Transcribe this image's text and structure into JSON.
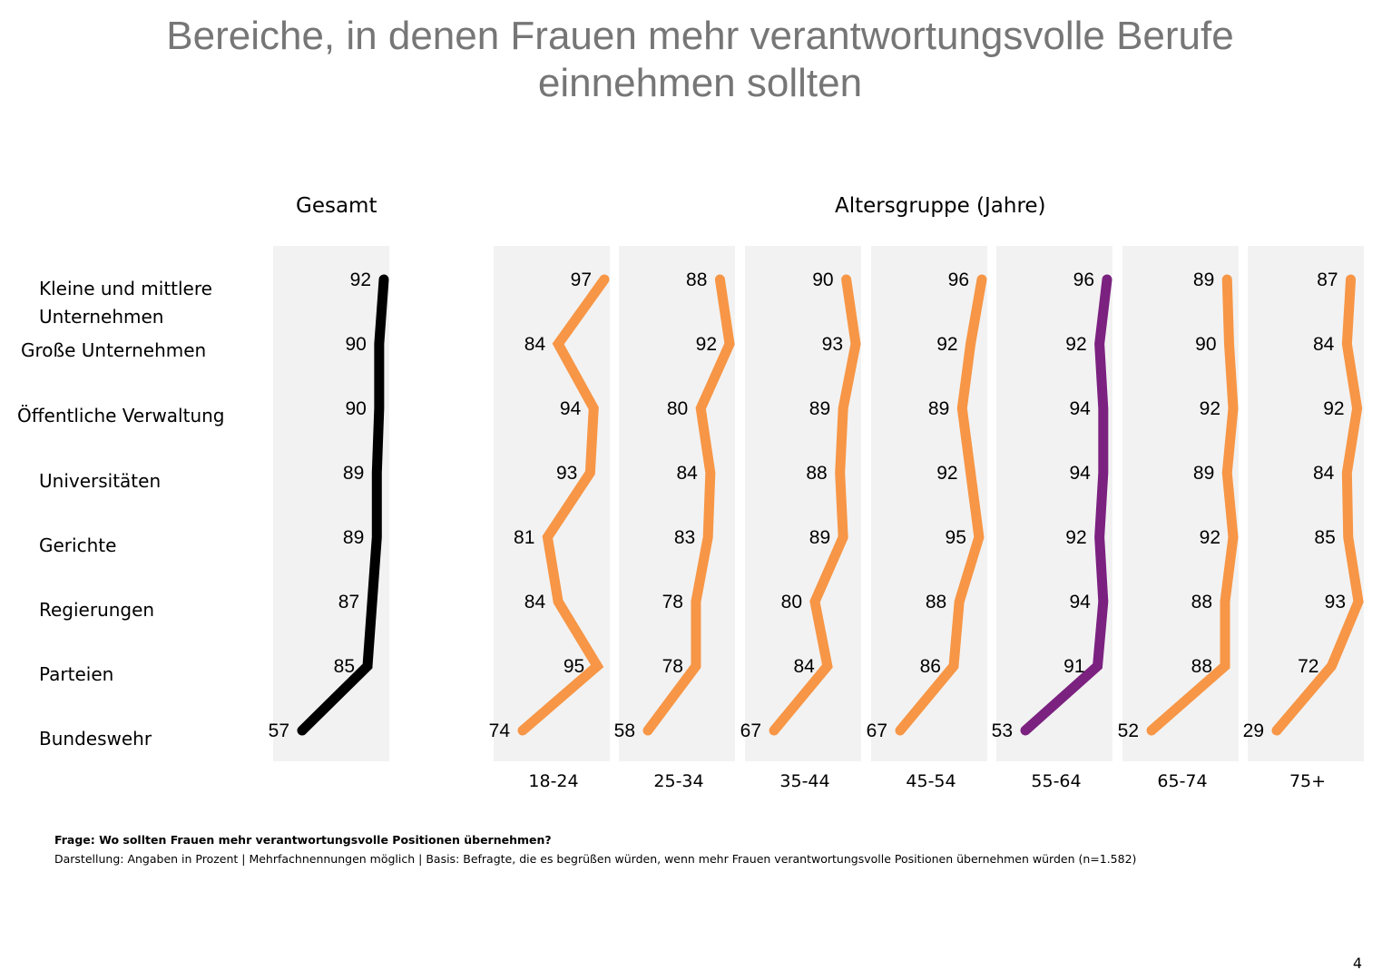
{
  "title_lines": [
    "Bereiche, in denen Frauen mehr verantwortungsvolle Berufe",
    "einnehmen sollten"
  ],
  "section_headers": {
    "total": "Gesamt",
    "age": "Altersgruppe (Jahre)"
  },
  "footer": {
    "question": "Frage: Wo sollten Frauen mehr verantwortungsvolle Positionen übernehmen?",
    "note": "Darstellung: Angaben in Prozent | Mehrfachnennungen möglich | Basis: Befragte, die es begrüßen würden, wenn mehr Frauen verantwortungsvolle Positionen übernehmen würden (n=1.582)"
  },
  "page_number": "4",
  "colors": {
    "total": "#000000",
    "age_default": "#F79646",
    "age_highlight": "#7B2180",
    "panel_bg": "#F2F2F2",
    "title": "#767676"
  },
  "chart_data": {
    "type": "line",
    "title": "Bereiche, in denen Frauen mehr verantwortungsvolle Berufe einnehmen sollten",
    "unit": "Prozent",
    "categories": [
      "Kleine und mittlere Unternehmen",
      "Große Unternehmen",
      "Öffentliche Verwaltung",
      "Universitäten",
      "Gerichte",
      "Regierungen",
      "Parteien",
      "Bundeswehr"
    ],
    "category_display": [
      [
        "Kleine und mittlere",
        "Unternehmen"
      ],
      [
        "Große Unternehmen"
      ],
      [
        "Öffentliche Verwaltung"
      ],
      [
        "Universitäten"
      ],
      [
        "Gerichte"
      ],
      [
        "Regierungen"
      ],
      [
        "Parteien"
      ],
      [
        "Bundeswehr"
      ]
    ],
    "series": [
      {
        "name": "Gesamt",
        "group": "total",
        "values": [
          92,
          90,
          90,
          89,
          89,
          87,
          85,
          57
        ]
      },
      {
        "name": "18-24",
        "group": "age",
        "values": [
          97,
          84,
          94,
          93,
          81,
          84,
          95,
          74
        ]
      },
      {
        "name": "25-34",
        "group": "age",
        "values": [
          88,
          92,
          80,
          84,
          83,
          78,
          78,
          58
        ]
      },
      {
        "name": "35-44",
        "group": "age",
        "values": [
          90,
          93,
          89,
          88,
          89,
          80,
          84,
          67
        ]
      },
      {
        "name": "45-54",
        "group": "age",
        "values": [
          96,
          92,
          89,
          92,
          95,
          88,
          86,
          67
        ]
      },
      {
        "name": "55-64",
        "group": "age",
        "highlight": true,
        "values": [
          96,
          92,
          94,
          94,
          92,
          94,
          91,
          53
        ]
      },
      {
        "name": "65-74",
        "group": "age",
        "values": [
          89,
          90,
          92,
          89,
          92,
          88,
          88,
          52
        ]
      },
      {
        "name": "75+",
        "group": "age",
        "values": [
          87,
          84,
          92,
          84,
          85,
          93,
          72,
          29
        ]
      }
    ],
    "orientation": "vertical profile lines, one small panel per series",
    "grid": false
  }
}
